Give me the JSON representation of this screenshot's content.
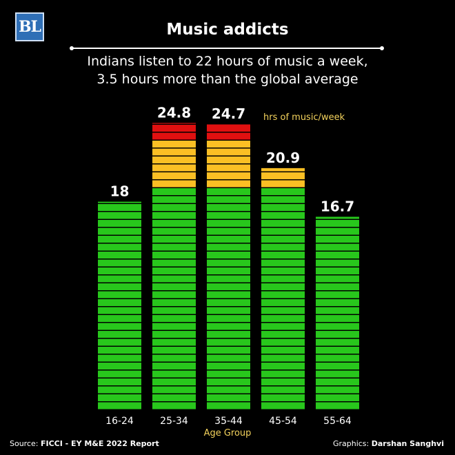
{
  "logo_text": "BL",
  "title": "Music addicts",
  "subtitle_line1": "Indians listen to 22 hours of music a week,",
  "subtitle_line2": "3.5 hours more than the global average",
  "source_prefix": "Source: ",
  "source_name": "FICCI - EY M&E 2022 Report",
  "credit_prefix": "Graphics: ",
  "credit_name": "Darshan Sanghvi",
  "colors": {
    "background": "#000000",
    "green": "#28c71c",
    "orange": "#fbbf24",
    "red": "#e01010",
    "accent_text": "#f3d25c"
  },
  "chart_data": {
    "type": "bar",
    "ylabel": "hrs of music/week",
    "xlabel": "Age Group",
    "categories": [
      "16-24",
      "25-34",
      "35-44",
      "45-54",
      "55-64"
    ],
    "values": [
      18,
      24.8,
      24.7,
      20.9,
      16.7
    ],
    "value_labels": [
      "18",
      "24.8",
      "24.7",
      "20.9",
      "16.7"
    ],
    "color_thresholds": {
      "green_below": 19.5,
      "orange_below": 23
    },
    "ylim": [
      0,
      25
    ],
    "grid": false,
    "legend": "none"
  }
}
